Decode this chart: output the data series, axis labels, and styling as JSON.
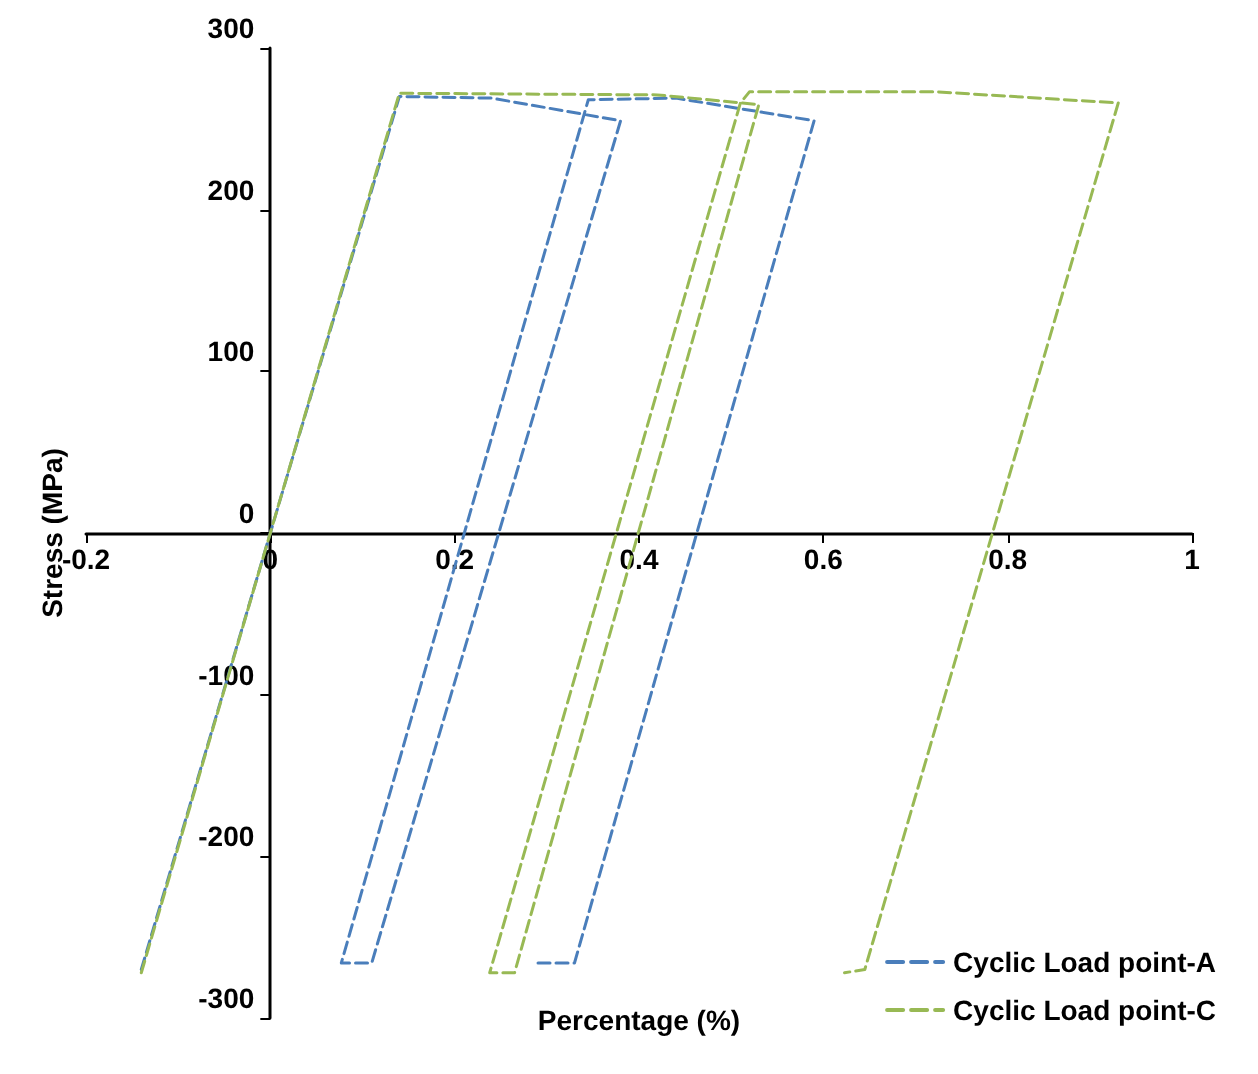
{
  "chart_data": {
    "type": "line",
    "xlabel": "Percentage (%)",
    "ylabel": "Stress (MPa)",
    "series": [
      {
        "name": "Cyclic Load point-A",
        "color": "#4a7ebb",
        "x": [
          -0.14,
          0,
          0.14,
          0.24,
          0.38,
          0.11,
          0.077,
          0.345,
          0.44,
          0.59,
          0.33,
          0.29
        ],
        "values": [
          -270,
          0,
          270,
          269,
          255,
          -266,
          -266,
          268,
          269,
          255,
          -266,
          -266
        ]
      },
      {
        "name": "Cyclic Load point-C",
        "color": "#98b954",
        "x": [
          -0.14,
          0,
          0.14,
          0.42,
          0.53,
          0.265,
          0.238,
          0.51,
          0.52,
          0.72,
          0.92,
          0.645,
          0.623
        ],
        "values": [
          -272,
          0,
          272,
          271,
          265,
          -272,
          -272,
          266,
          273,
          273,
          266,
          -270,
          -272
        ]
      }
    ],
    "xlim": [
      -0.2,
      1
    ],
    "xticks": [
      -0.2,
      0,
      0.2,
      0.4,
      0.6,
      0.8,
      1
    ],
    "ylim": [
      -300,
      300
    ],
    "yticks": [
      -300,
      -200,
      -100,
      0,
      100,
      200,
      300
    ],
    "grid": false,
    "legend": "bottom right",
    "marker": "none",
    "line_style": "dashed"
  }
}
